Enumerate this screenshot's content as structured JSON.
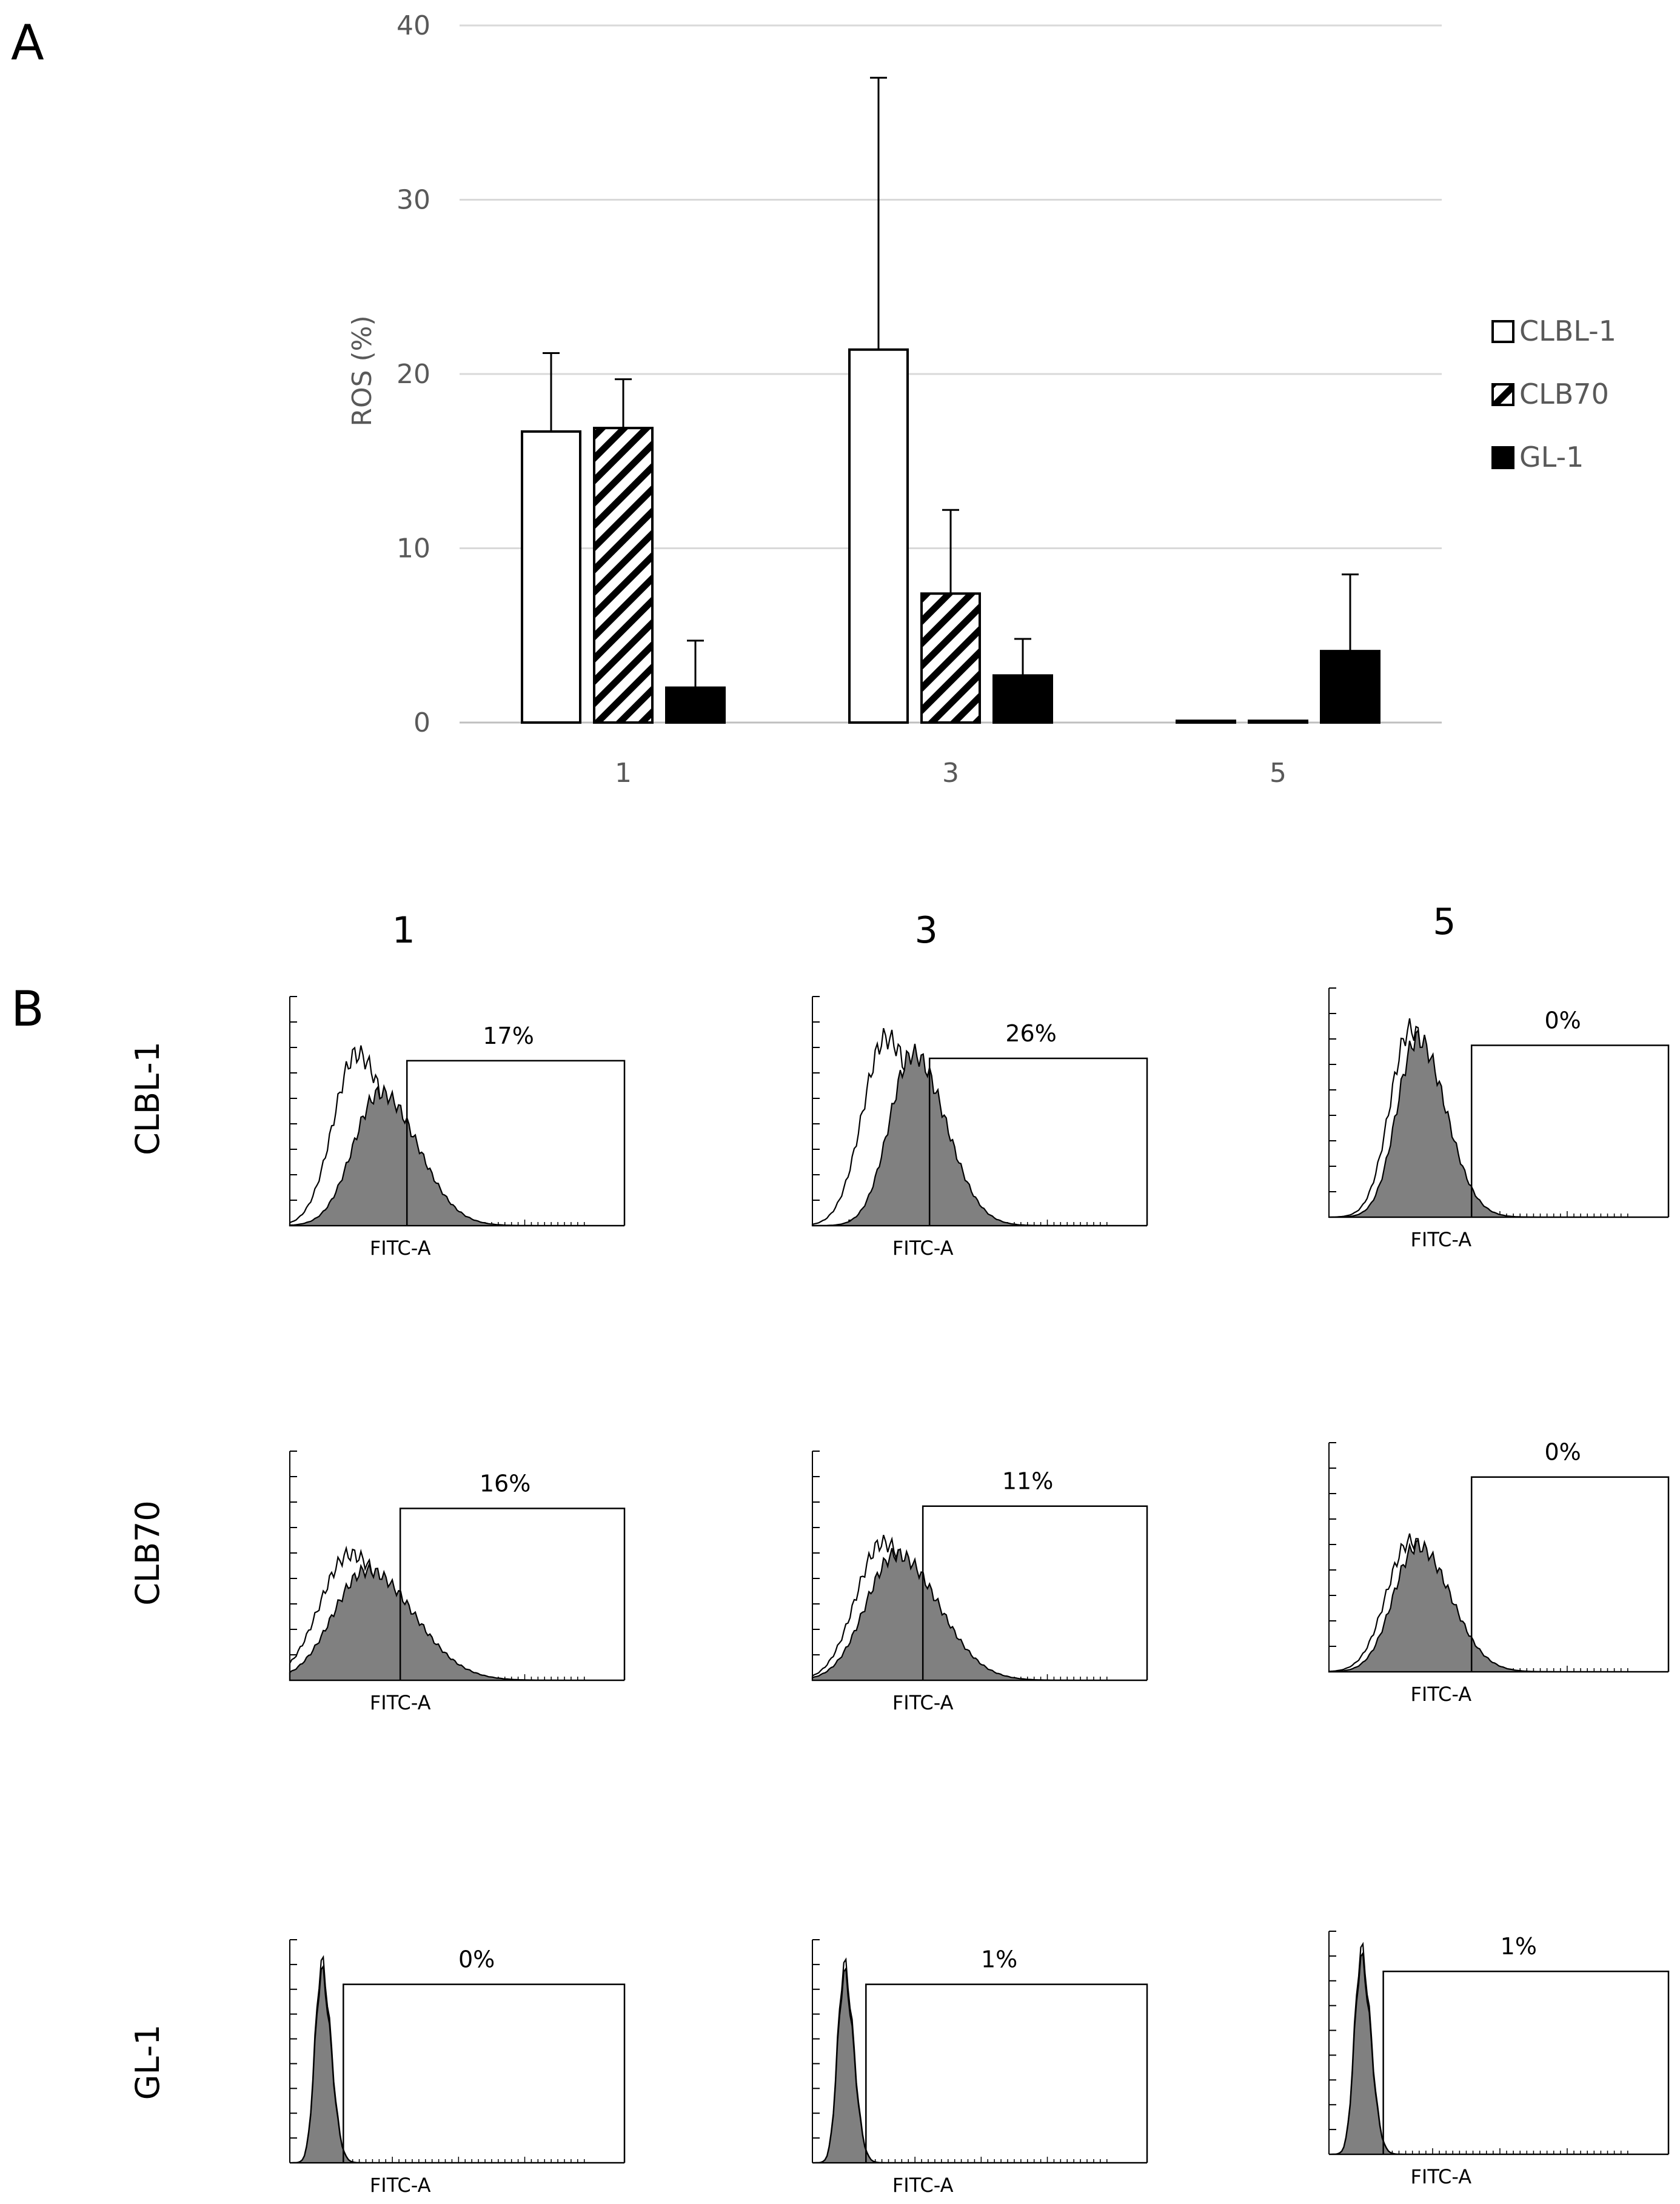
{
  "panels": {
    "a_label": "A",
    "b_label": "B"
  },
  "chart_data": {
    "type": "bar",
    "title": "",
    "xlabel": "",
    "ylabel": "ROS (%)",
    "ylim": [
      0,
      40
    ],
    "yticks": [
      0,
      10,
      20,
      30,
      40
    ],
    "grid": true,
    "legend_position": "right",
    "categories": [
      "1",
      "3",
      "5"
    ],
    "series": [
      {
        "name": "CLBL-1",
        "pattern": "white",
        "values": [
          16.7,
          21.4,
          0.1
        ],
        "errors": [
          4.5,
          15.6,
          0
        ]
      },
      {
        "name": "CLB70",
        "pattern": "hatch",
        "values": [
          16.9,
          7.4,
          0.1
        ],
        "errors": [
          2.8,
          4.8,
          0
        ]
      },
      {
        "name": "GL-1",
        "pattern": "black",
        "values": [
          2.0,
          2.7,
          4.1
        ],
        "errors": [
          2.7,
          2.1,
          4.4
        ]
      }
    ]
  },
  "flow": {
    "columns": [
      "1",
      "3",
      "5"
    ],
    "rows": [
      "CLBL-1",
      "CLB70",
      "GL-1"
    ],
    "axis_label": "FITC-A",
    "percentages": [
      [
        "17%",
        "26%",
        "0%"
      ],
      [
        "16%",
        "11%",
        "0%"
      ],
      [
        "0%",
        "1%",
        "1%"
      ]
    ]
  },
  "colors": {
    "grid": "#d9d9d9",
    "axis": "#bfbfbf",
    "text": "#595959",
    "fill": "#808080"
  }
}
